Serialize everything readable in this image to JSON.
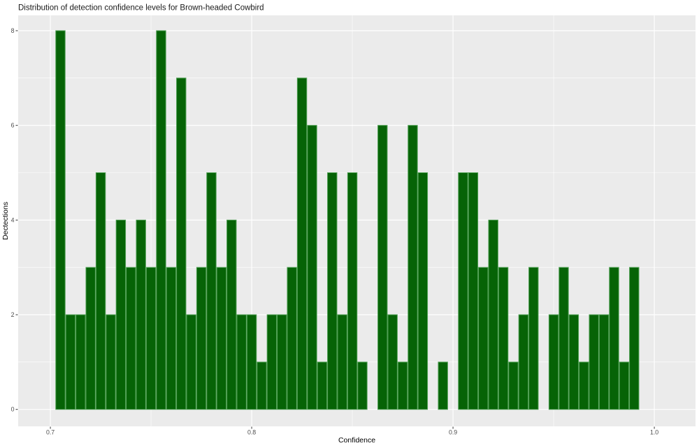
{
  "chart_data": {
    "type": "bar",
    "subtype": "histogram",
    "title": "Distribution of detection confidence levels for Brown-headed Cowbird",
    "xlabel": "Confidence",
    "ylabel": "Dectections",
    "bin_width": 0.005,
    "x": [
      0.705,
      0.71,
      0.715,
      0.72,
      0.725,
      0.73,
      0.735,
      0.74,
      0.745,
      0.75,
      0.755,
      0.76,
      0.765,
      0.77,
      0.775,
      0.78,
      0.785,
      0.79,
      0.795,
      0.8,
      0.805,
      0.81,
      0.815,
      0.82,
      0.825,
      0.83,
      0.835,
      0.84,
      0.845,
      0.85,
      0.855,
      0.86,
      0.865,
      0.87,
      0.875,
      0.88,
      0.885,
      0.89,
      0.895,
      0.9,
      0.905,
      0.91,
      0.915,
      0.92,
      0.925,
      0.93,
      0.935,
      0.94,
      0.945,
      0.95,
      0.955,
      0.96,
      0.965,
      0.97,
      0.975,
      0.98,
      0.985,
      0.99
    ],
    "values": [
      8,
      2,
      2,
      3,
      5,
      2,
      4,
      3,
      4,
      3,
      8,
      3,
      7,
      2,
      3,
      5,
      3,
      4,
      2,
      2,
      1,
      2,
      2,
      3,
      7,
      6,
      1,
      5,
      2,
      5,
      1,
      0,
      6,
      2,
      1,
      6,
      5,
      0,
      1,
      0,
      5,
      5,
      3,
      4,
      3,
      1,
      2,
      3,
      0,
      2,
      3,
      2,
      1,
      2,
      2,
      3,
      1,
      3
    ],
    "xlim": [
      0.684,
      1.0205
    ],
    "ylim": [
      -0.36,
      8.33
    ],
    "x_ticks": {
      "positions": [
        0.7,
        0.8,
        0.9,
        1.0
      ],
      "labels": [
        "0.7",
        "0.8",
        "0.9",
        "1.0"
      ]
    },
    "y_ticks": {
      "positions": [
        0,
        2,
        4,
        6,
        8
      ],
      "labels": [
        "0",
        "2",
        "4",
        "6",
        "8"
      ]
    },
    "x_minor_gridlines": [
      0.75,
      0.85,
      0.95
    ],
    "y_minor_gridlines": [
      1,
      3,
      5,
      7
    ],
    "grid": true,
    "legend": "none",
    "colors": {
      "page_bg": "#ffffff",
      "panel_bg": "#ebebeb",
      "gridline": "#ffffff",
      "bar_fill": "#066306",
      "bar_stroke": "#4f9f53",
      "tick_mark": "#333333",
      "tick_label": "#4d4d4d",
      "title_text": "#1a1a1a",
      "axis_title_text": "#000000"
    }
  }
}
